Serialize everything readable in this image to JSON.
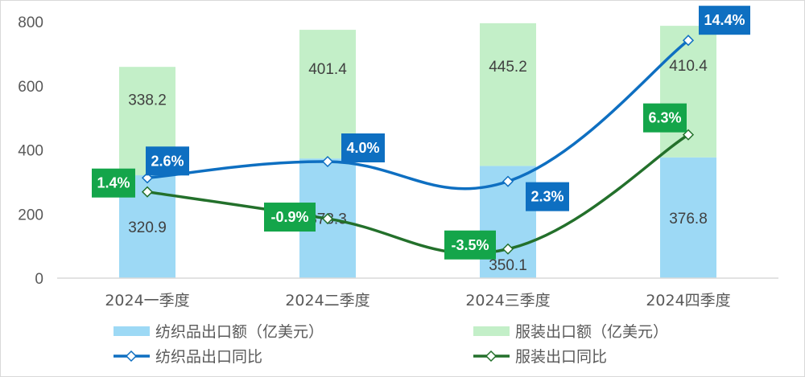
{
  "chart_data": {
    "type": "bar",
    "stacked": true,
    "categories": [
      "2024一季度",
      "2024二季度",
      "2024三季度",
      "2024四季度"
    ],
    "ylim": [
      0,
      800
    ],
    "yticks": [
      0,
      200,
      400,
      600,
      800
    ],
    "y2lim": [
      -6,
      16
    ],
    "grid": false,
    "legend_position": "bottom",
    "series": [
      {
        "name": "纺织品出口额（亿美元）",
        "type": "bar",
        "color": "#9dd9f5",
        "values": [
          320.9,
          373.3,
          350.1,
          376.8
        ],
        "labels": [
          "320.9",
          "373.3",
          "350.1",
          "376.8"
        ]
      },
      {
        "name": "服装出口额（亿美元）",
        "type": "bar",
        "color": "#c3efc8",
        "values": [
          338.2,
          401.4,
          445.2,
          410.4
        ],
        "labels": [
          "338.2",
          "401.4",
          "445.2",
          "410.4"
        ]
      },
      {
        "name": "纺织品出口同比",
        "type": "line",
        "axis": "secondary",
        "color": "#0e6fc1",
        "label_bg": "#0e6fc1",
        "values": [
          2.6,
          4.0,
          2.3,
          14.4
        ],
        "labels": [
          "2.6%",
          "4.0%",
          "2.3%",
          "14.4%"
        ]
      },
      {
        "name": "服装出口同比",
        "type": "line",
        "axis": "secondary",
        "color": "#23702b",
        "label_bg": "#14a54a",
        "values": [
          1.4,
          -0.9,
          -3.5,
          6.3
        ],
        "labels": [
          "1.4%",
          "-0.9%",
          "-3.5%",
          "6.3%"
        ]
      }
    ]
  }
}
